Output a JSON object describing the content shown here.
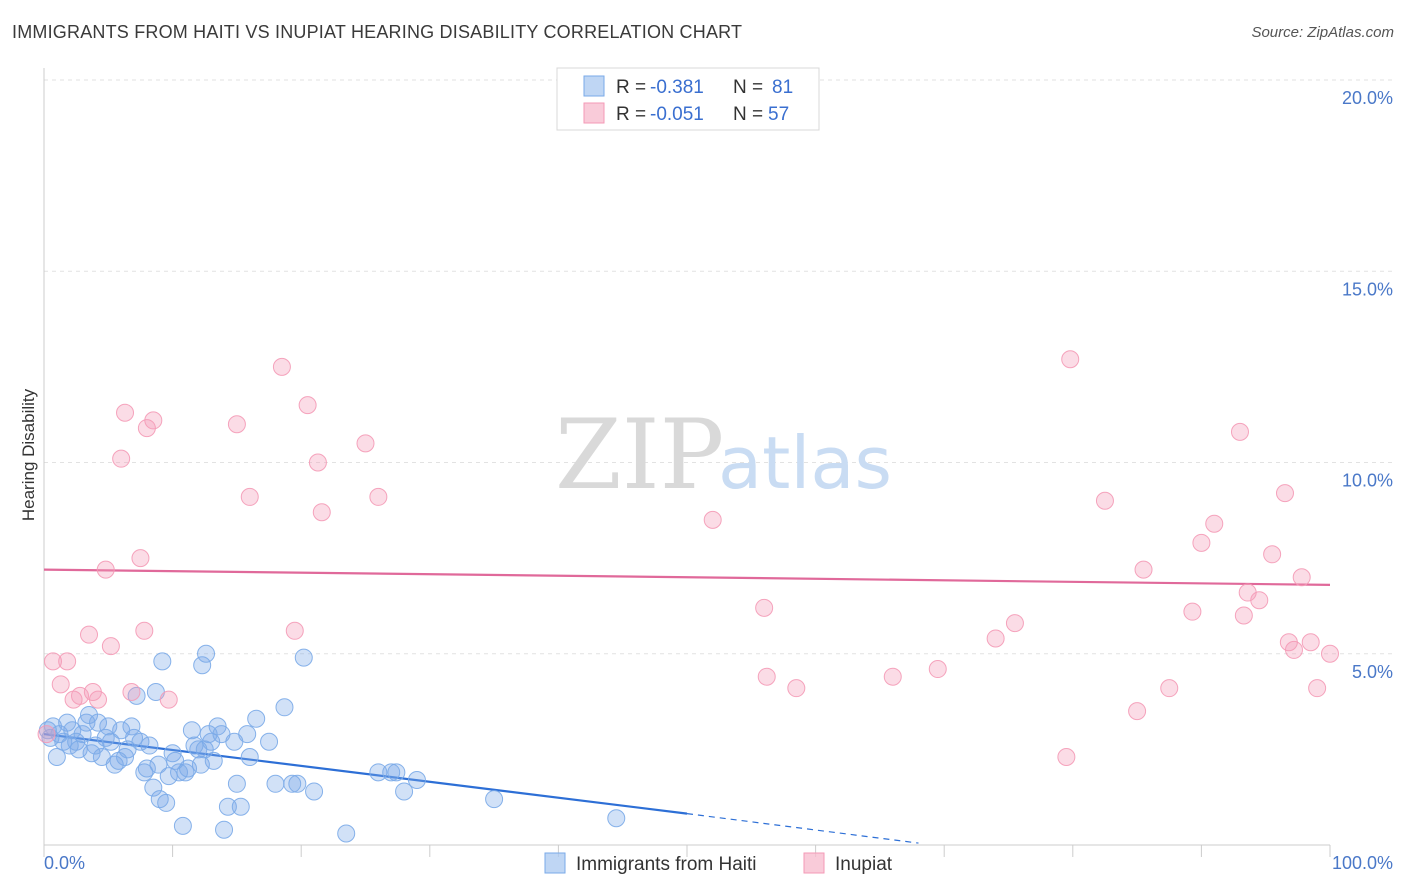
{
  "header": {
    "title": "IMMIGRANTS FROM HAITI VS INUPIAT HEARING DISABILITY CORRELATION CHART",
    "source": "Source: ZipAtlas.com"
  },
  "watermark": {
    "zip": "ZIP",
    "atlas": "atlas"
  },
  "legend_top": [
    {
      "r_label": "R =",
      "r_value": "-0.381",
      "n_label": "N =",
      "n_value": "81",
      "color": "#a9c8f0"
    },
    {
      "r_label": "R =",
      "r_value": "-0.051",
      "n_label": "N =",
      "n_value": "57",
      "color": "#f7b9cc"
    }
  ],
  "chart_data": {
    "type": "scatter",
    "title": "IMMIGRANTS FROM HAITI VS INUPIAT HEARING DISABILITY CORRELATION CHART",
    "xlabel": "",
    "ylabel": "Hearing Disability",
    "xlim": [
      0,
      100
    ],
    "ylim": [
      0,
      20.5
    ],
    "x_tick_labels": {
      "left": "0.0%",
      "right": "100.0%"
    },
    "y_ticks": [
      {
        "value": 5,
        "label": "5.0%"
      },
      {
        "value": 10,
        "label": "10.0%"
      },
      {
        "value": 15,
        "label": "15.0%"
      },
      {
        "value": 20,
        "label": "20.0%"
      }
    ],
    "grid": true,
    "legend_placement": "bottom-center",
    "series": [
      {
        "name": "Immigrants from Haiti",
        "color": "#7aaae8",
        "line_color": "#2d6fd6",
        "trend": {
          "x0": 0,
          "y0": 2.9,
          "x1": 50,
          "y1": 0.82,
          "dash_to_x": 68,
          "dash_to_y": 0.05
        },
        "points": [
          [
            0.3,
            3.0
          ],
          [
            0.5,
            2.8
          ],
          [
            0.7,
            3.1
          ],
          [
            1.0,
            2.3
          ],
          [
            1.2,
            2.9
          ],
          [
            1.5,
            2.7
          ],
          [
            1.8,
            3.2
          ],
          [
            2.0,
            2.6
          ],
          [
            2.2,
            3.0
          ],
          [
            2.5,
            2.7
          ],
          [
            2.7,
            2.5
          ],
          [
            3.0,
            2.9
          ],
          [
            3.3,
            3.2
          ],
          [
            3.5,
            3.4
          ],
          [
            3.7,
            2.4
          ],
          [
            4.0,
            2.6
          ],
          [
            4.2,
            3.2
          ],
          [
            4.5,
            2.3
          ],
          [
            4.8,
            2.8
          ],
          [
            5.0,
            3.1
          ],
          [
            5.2,
            2.7
          ],
          [
            5.5,
            2.1
          ],
          [
            5.8,
            2.2
          ],
          [
            6.0,
            3.0
          ],
          [
            6.3,
            2.3
          ],
          [
            6.5,
            2.5
          ],
          [
            6.8,
            3.1
          ],
          [
            7.0,
            2.8
          ],
          [
            7.2,
            3.9
          ],
          [
            7.5,
            2.7
          ],
          [
            7.8,
            1.9
          ],
          [
            8.0,
            2.0
          ],
          [
            8.2,
            2.6
          ],
          [
            8.5,
            1.5
          ],
          [
            8.7,
            4.0
          ],
          [
            8.9,
            2.1
          ],
          [
            9.0,
            1.2
          ],
          [
            9.2,
            4.8
          ],
          [
            9.5,
            1.1
          ],
          [
            9.7,
            1.8
          ],
          [
            10.0,
            2.4
          ],
          [
            10.2,
            2.2
          ],
          [
            10.5,
            1.9
          ],
          [
            10.8,
            0.5
          ],
          [
            11.0,
            1.9
          ],
          [
            11.2,
            2.0
          ],
          [
            11.5,
            3.0
          ],
          [
            11.7,
            2.6
          ],
          [
            12.0,
            2.5
          ],
          [
            12.2,
            2.1
          ],
          [
            12.5,
            2.5
          ],
          [
            12.8,
            2.9
          ],
          [
            13.0,
            2.7
          ],
          [
            13.2,
            2.2
          ],
          [
            13.5,
            3.1
          ],
          [
            13.8,
            2.9
          ],
          [
            14.0,
            0.4
          ],
          [
            14.3,
            1.0
          ],
          [
            14.8,
            2.7
          ],
          [
            15.0,
            1.6
          ],
          [
            15.3,
            1.0
          ],
          [
            15.8,
            2.9
          ],
          [
            16.0,
            2.3
          ],
          [
            16.5,
            3.3
          ],
          [
            17.5,
            2.7
          ],
          [
            18.0,
            1.6
          ],
          [
            18.7,
            3.6
          ],
          [
            19.3,
            1.6
          ],
          [
            19.7,
            1.6
          ],
          [
            20.2,
            4.9
          ],
          [
            21.0,
            1.4
          ],
          [
            23.5,
            0.3
          ],
          [
            26.0,
            1.9
          ],
          [
            27.0,
            1.9
          ],
          [
            27.4,
            1.9
          ],
          [
            28.0,
            1.4
          ],
          [
            29.0,
            1.7
          ],
          [
            35.0,
            1.2
          ],
          [
            44.5,
            0.7
          ],
          [
            12.3,
            4.7
          ],
          [
            12.6,
            5.0
          ]
        ]
      },
      {
        "name": "Inupiat",
        "color": "#f49ab6",
        "line_color": "#e0699a",
        "trend": {
          "x0": 0,
          "y0": 7.2,
          "x1": 100,
          "y1": 6.8
        },
        "points": [
          [
            0.2,
            2.9
          ],
          [
            0.7,
            4.8
          ],
          [
            1.3,
            4.2
          ],
          [
            1.8,
            4.8
          ],
          [
            2.3,
            3.8
          ],
          [
            2.8,
            3.9
          ],
          [
            3.5,
            5.5
          ],
          [
            3.8,
            4.0
          ],
          [
            4.2,
            3.8
          ],
          [
            4.8,
            7.2
          ],
          [
            5.2,
            5.2
          ],
          [
            6.0,
            10.1
          ],
          [
            6.3,
            11.3
          ],
          [
            6.8,
            4.0
          ],
          [
            7.5,
            7.5
          ],
          [
            7.8,
            5.6
          ],
          [
            8.0,
            10.9
          ],
          [
            8.5,
            11.1
          ],
          [
            9.7,
            3.8
          ],
          [
            15.0,
            11.0
          ],
          [
            16.0,
            9.1
          ],
          [
            18.5,
            12.5
          ],
          [
            19.5,
            5.6
          ],
          [
            20.5,
            11.5
          ],
          [
            21.3,
            10.0
          ],
          [
            21.6,
            8.7
          ],
          [
            25.0,
            10.5
          ],
          [
            26.0,
            9.1
          ],
          [
            52.0,
            8.5
          ],
          [
            56.0,
            6.2
          ],
          [
            56.2,
            4.4
          ],
          [
            58.5,
            4.1
          ],
          [
            66.0,
            4.4
          ],
          [
            69.5,
            4.6
          ],
          [
            74.0,
            5.4
          ],
          [
            75.5,
            5.8
          ],
          [
            79.5,
            2.3
          ],
          [
            79.8,
            12.7
          ],
          [
            82.5,
            9.0
          ],
          [
            85.0,
            3.5
          ],
          [
            85.5,
            7.2
          ],
          [
            87.5,
            4.1
          ],
          [
            89.3,
            6.1
          ],
          [
            90.0,
            7.9
          ],
          [
            91.0,
            8.4
          ],
          [
            93.0,
            10.8
          ],
          [
            93.3,
            6.0
          ],
          [
            93.6,
            6.6
          ],
          [
            94.5,
            6.4
          ],
          [
            95.5,
            7.6
          ],
          [
            96.5,
            9.2
          ],
          [
            96.8,
            5.3
          ],
          [
            97.2,
            5.1
          ],
          [
            97.8,
            7.0
          ],
          [
            98.5,
            5.3
          ],
          [
            99.0,
            4.1
          ],
          [
            100.0,
            5.0
          ]
        ]
      }
    ]
  }
}
